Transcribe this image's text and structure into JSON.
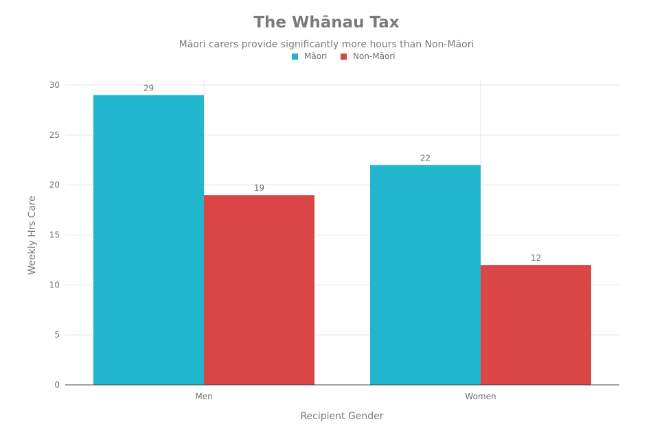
{
  "chart_data": {
    "type": "bar",
    "title": "The Whānau Tax",
    "subtitle": "Māori carers provide significantly more hours than Non-Māori",
    "xlabel": "Recipient Gender",
    "ylabel": "Weekly Hrs Care",
    "categories": [
      "Men",
      "Women"
    ],
    "series": [
      {
        "name": "Māori",
        "values": [
          29,
          22
        ],
        "color": "#21b6cd"
      },
      {
        "name": "Non-Māori",
        "values": [
          19,
          12
        ],
        "color": "#da4546"
      }
    ],
    "ylim": [
      0,
      30
    ],
    "yticks": [
      0,
      5,
      10,
      15,
      20,
      25,
      30
    ],
    "grid": true,
    "legend_position": "top-center"
  }
}
